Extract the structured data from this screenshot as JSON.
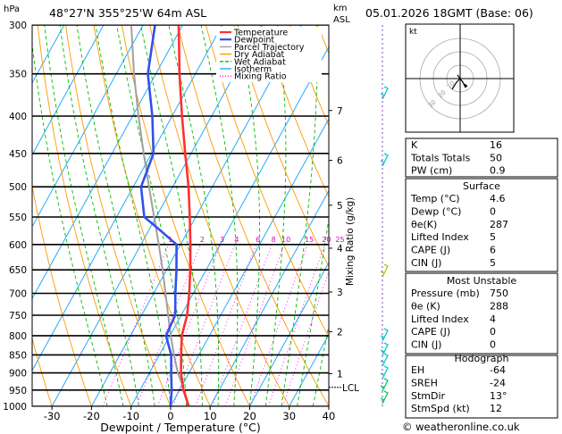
{
  "header": {
    "location": "48°27'N  355°25'W  64m  ASL",
    "datetime": "05.01.2026  18GMT  (Base: 06)",
    "hpa_label": "hPa",
    "km_label": "km",
    "asl_label": "ASL"
  },
  "footer": {
    "credit": "© weatheronline.co.uk"
  },
  "chart_data": {
    "type": "line",
    "subtype": "skew-T log-P thermodynamic diagram",
    "xlabel": "Dewpoint / Temperature (°C)",
    "ylabel": "hPa",
    "xlim": [
      -35,
      40
    ],
    "ylim": [
      1000,
      300
    ],
    "y_scale": "log",
    "x_ticks": [
      -30,
      -20,
      -10,
      0,
      10,
      20,
      30,
      40
    ],
    "pressure_levels": [
      300,
      350,
      400,
      450,
      500,
      550,
      600,
      650,
      700,
      750,
      800,
      850,
      900,
      950,
      1000
    ],
    "km_ticks": [
      {
        "label": "1",
        "p": 902
      },
      {
        "label": "2",
        "p": 790
      },
      {
        "label": "3",
        "p": 697
      },
      {
        "label": "4",
        "p": 607
      },
      {
        "label": "5",
        "p": 530
      },
      {
        "label": "6",
        "p": 460
      },
      {
        "label": "7",
        "p": 393
      }
    ],
    "lcl_label": "LCL",
    "lcl_pressure": 942,
    "mixing_ratio_label": "Mixing Ratio (g/kg)",
    "mixing_ratio_values": [
      "1",
      "2",
      "3",
      "4",
      "6",
      "8",
      "10",
      "15",
      "20",
      "25"
    ],
    "legend": [
      {
        "name": "Temperature",
        "color": "#ff3030"
      },
      {
        "name": "Dewpoint",
        "color": "#3050f0"
      },
      {
        "name": "Parcel Trajectory",
        "color": "#a0a0a0"
      },
      {
        "name": "Dry Adiabat",
        "color": "#ff9900"
      },
      {
        "name": "Wet Adiabat",
        "color": "#00bb00"
      },
      {
        "name": "Isotherm",
        "color": "#22aaff"
      },
      {
        "name": "Mixing Ratio",
        "color": "#ff00ff"
      }
    ],
    "series": [
      {
        "name": "Temperature",
        "points": [
          [
            1000,
            4.6
          ],
          [
            950,
            1.0
          ],
          [
            900,
            -2.0
          ],
          [
            850,
            -4.5
          ],
          [
            800,
            -7.0
          ],
          [
            750,
            -8.5
          ],
          [
            700,
            -11.0
          ],
          [
            650,
            -14.0
          ],
          [
            600,
            -17.5
          ],
          [
            550,
            -21.5
          ],
          [
            500,
            -26.0
          ],
          [
            450,
            -31.5
          ],
          [
            400,
            -37.5
          ],
          [
            350,
            -44.0
          ],
          [
            300,
            -51.0
          ]
        ]
      },
      {
        "name": "Dewpoint",
        "points": [
          [
            1000,
            0
          ],
          [
            950,
            -2.0
          ],
          [
            900,
            -4.5
          ],
          [
            850,
            -7.0
          ],
          [
            800,
            -11.0
          ],
          [
            750,
            -11.5
          ],
          [
            700,
            -14.5
          ],
          [
            650,
            -17.5
          ],
          [
            600,
            -21.0
          ],
          [
            570,
            -28.0
          ],
          [
            550,
            -33.0
          ],
          [
            500,
            -38.0
          ],
          [
            450,
            -39.5
          ],
          [
            400,
            -45.0
          ],
          [
            350,
            -52.0
          ],
          [
            300,
            -57.0
          ]
        ]
      },
      {
        "name": "Parcel Trajectory",
        "points": [
          [
            1000,
            4.6
          ],
          [
            942,
            0.6
          ],
          [
            900,
            -2.8
          ],
          [
            850,
            -6.3
          ],
          [
            800,
            -9.8
          ],
          [
            750,
            -13.3
          ],
          [
            700,
            -17.0
          ],
          [
            650,
            -21.0
          ],
          [
            600,
            -25.5
          ],
          [
            550,
            -30.5
          ],
          [
            500,
            -36.0
          ],
          [
            450,
            -42.0
          ],
          [
            400,
            -48.5
          ],
          [
            350,
            -55.5
          ],
          [
            300,
            -63.0
          ]
        ]
      }
    ]
  },
  "indices": [
    {
      "label": "K",
      "value": "16"
    },
    {
      "label": "Totals Totals",
      "value": "50"
    },
    {
      "label": "PW (cm)",
      "value": "0.9"
    }
  ],
  "surface": {
    "title": "Surface",
    "rows": [
      {
        "label": "Temp (°C)",
        "value": "4.6"
      },
      {
        "label": "Dewp (°C)",
        "value": "0"
      },
      {
        "label": "θe(K)",
        "value": "287"
      },
      {
        "label": "Lifted Index",
        "value": "5"
      },
      {
        "label": "CAPE (J)",
        "value": "6"
      },
      {
        "label": "CIN (J)",
        "value": "5"
      }
    ]
  },
  "most_unstable": {
    "title": "Most Unstable",
    "rows": [
      {
        "label": "Pressure (mb)",
        "value": "750"
      },
      {
        "label": "θe (K)",
        "value": "288"
      },
      {
        "label": "Lifted Index",
        "value": "4"
      },
      {
        "label": "CAPE (J)",
        "value": "0"
      },
      {
        "label": "CIN (J)",
        "value": "0"
      }
    ]
  },
  "hodograph": {
    "title": "Hodograph",
    "kt_label": "kt",
    "ring_labels": [
      "10",
      "20",
      "30"
    ],
    "rows": [
      {
        "label": "EH",
        "value": "-64"
      },
      {
        "label": "SREH",
        "value": "-24"
      },
      {
        "label": "StmDir",
        "value": "13°"
      },
      {
        "label": "StmSpd (kt)",
        "value": "12"
      }
    ]
  }
}
